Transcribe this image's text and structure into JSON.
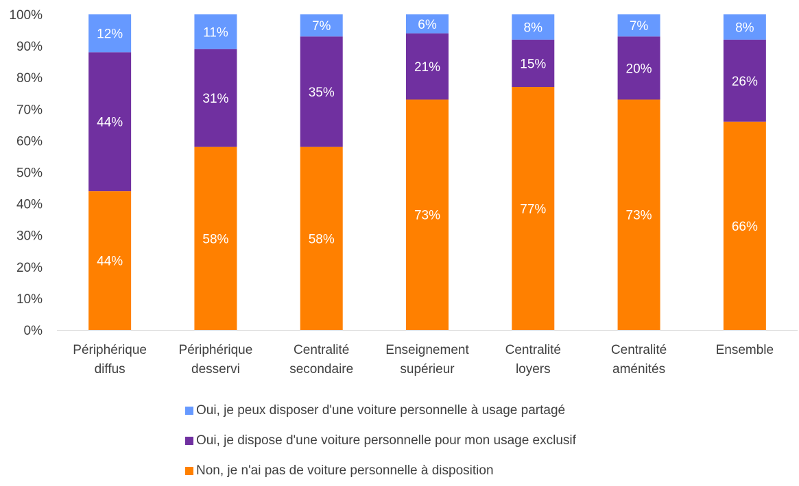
{
  "chart_data": {
    "type": "bar",
    "stacked": true,
    "categories": [
      [
        "Périphérique",
        "diffus"
      ],
      [
        "Périphérique",
        "desservi"
      ],
      [
        "Centralité",
        "secondaire"
      ],
      [
        "Enseignement",
        "supérieur"
      ],
      [
        "Centralité",
        "loyers"
      ],
      [
        "Centralité",
        "aménités"
      ],
      [
        "Ensemble"
      ]
    ],
    "series": [
      {
        "name": "Non, je n'ai pas de voiture personnelle à disposition",
        "color": "#FF8000",
        "values": [
          44,
          58,
          58,
          73,
          77,
          73,
          66
        ],
        "labels": [
          "44%",
          "58%",
          "58%",
          "73%",
          "77%",
          "73%",
          "66%"
        ]
      },
      {
        "name": "Oui, je dispose d'une voiture personnelle pour mon usage exclusif",
        "color": "#7030A0",
        "values": [
          44,
          31,
          35,
          21,
          15,
          20,
          26
        ],
        "labels": [
          "44%",
          "31%",
          "35%",
          "21%",
          "15%",
          "20%",
          "26%"
        ]
      },
      {
        "name": "Oui, je peux disposer d'une voiture personnelle à usage partagé",
        "color": "#6699FF",
        "values": [
          12,
          11,
          7,
          6,
          8,
          7,
          8
        ],
        "labels": [
          "12%",
          "11%",
          "7%",
          "6%",
          "8%",
          "7%",
          "8%"
        ]
      }
    ],
    "ylim": [
      0,
      100
    ],
    "yticks": [
      "0%",
      "10%",
      "20%",
      "30%",
      "40%",
      "50%",
      "60%",
      "70%",
      "80%",
      "90%",
      "100%"
    ],
    "grid": false,
    "legend_position": "bottom",
    "title": "",
    "xlabel": "",
    "ylabel": ""
  },
  "legend": [
    {
      "label": "Oui, je peux disposer d'une voiture personnelle à usage partagé",
      "color": "#6699FF"
    },
    {
      "label": "Oui, je dispose d'une voiture personnelle pour mon usage exclusif",
      "color": "#7030A0"
    },
    {
      "label": "Non, je n'ai pas de voiture personnelle à disposition",
      "color": "#FF8000"
    }
  ]
}
